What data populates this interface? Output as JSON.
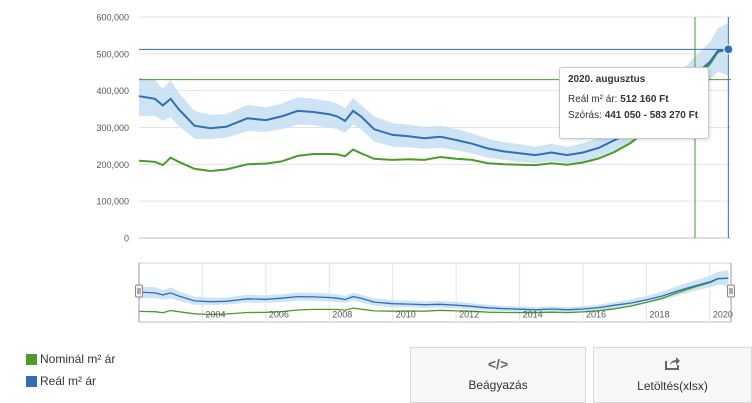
{
  "chart_data": [
    {
      "type": "line",
      "x_unit": "month",
      "xlim": [
        "2002-01",
        "2020-09"
      ],
      "ylim": [
        0,
        600000
      ],
      "y_ticks": [
        "0",
        "100,000",
        "200,000",
        "300,000",
        "400,000",
        "500,000",
        "600,000"
      ],
      "y_tick_values": [
        0,
        100000,
        200000,
        300000,
        400000,
        500000,
        600000
      ],
      "grid": true,
      "legend": "bottom-left",
      "series": [
        {
          "name": "Nominál m² ár",
          "color": "#4c9a2a",
          "points": [
            [
              "2002-01",
              210000
            ],
            [
              "2002-07",
              207000
            ],
            [
              "2002-10",
              198000
            ],
            [
              "2003-01",
              218000
            ],
            [
              "2003-04",
              207000
            ],
            [
              "2003-10",
              188000
            ],
            [
              "2004-04",
              182000
            ],
            [
              "2004-10",
              186000
            ],
            [
              "2005-06",
              200000
            ],
            [
              "2006-01",
              202000
            ],
            [
              "2006-07",
              208000
            ],
            [
              "2007-01",
              223000
            ],
            [
              "2007-07",
              228000
            ],
            [
              "2008-01",
              228000
            ],
            [
              "2008-04",
              227000
            ],
            [
              "2008-07",
              222000
            ],
            [
              "2008-10",
              240000
            ],
            [
              "2009-01",
              230000
            ],
            [
              "2009-06",
              215000
            ],
            [
              "2010-01",
              212000
            ],
            [
              "2010-07",
              214000
            ],
            [
              "2011-01",
              212000
            ],
            [
              "2011-07",
              220000
            ],
            [
              "2012-01",
              215000
            ],
            [
              "2012-07",
              212000
            ],
            [
              "2013-01",
              203000
            ],
            [
              "2013-07",
              200000
            ],
            [
              "2014-01",
              199000
            ],
            [
              "2014-07",
              198000
            ],
            [
              "2015-01",
              203000
            ],
            [
              "2015-07",
              199000
            ],
            [
              "2016-01",
              205000
            ],
            [
              "2016-07",
              216000
            ],
            [
              "2017-01",
              234000
            ],
            [
              "2017-07",
              258000
            ],
            [
              "2018-01",
              292000
            ],
            [
              "2018-07",
              330000
            ],
            [
              "2019-01",
              382000
            ],
            [
              "2019-07",
              430000
            ],
            [
              "2020-01",
              472000
            ],
            [
              "2020-04",
              505000
            ],
            [
              "2020-08",
              512000
            ]
          ]
        },
        {
          "name": "Reál m² ár",
          "color": "#2f6fb5",
          "band_label": "Szórás",
          "points": [
            [
              "2002-01",
              385000
            ],
            [
              "2002-07",
              378000
            ],
            [
              "2002-10",
              360000
            ],
            [
              "2003-01",
              378000
            ],
            [
              "2003-04",
              350000
            ],
            [
              "2003-10",
              305000
            ],
            [
              "2004-04",
              298000
            ],
            [
              "2004-10",
              302000
            ],
            [
              "2005-06",
              325000
            ],
            [
              "2006-01",
              320000
            ],
            [
              "2006-07",
              330000
            ],
            [
              "2007-01",
              345000
            ],
            [
              "2007-07",
              342000
            ],
            [
              "2008-01",
              336000
            ],
            [
              "2008-04",
              330000
            ],
            [
              "2008-07",
              318000
            ],
            [
              "2008-10",
              345000
            ],
            [
              "2009-01",
              330000
            ],
            [
              "2009-06",
              295000
            ],
            [
              "2010-01",
              280000
            ],
            [
              "2010-07",
              276000
            ],
            [
              "2011-01",
              271000
            ],
            [
              "2011-07",
              275000
            ],
            [
              "2012-01",
              266000
            ],
            [
              "2012-07",
              256000
            ],
            [
              "2013-01",
              243000
            ],
            [
              "2013-07",
              235000
            ],
            [
              "2014-01",
              230000
            ],
            [
              "2014-07",
              225000
            ],
            [
              "2015-01",
              232000
            ],
            [
              "2015-07",
              225000
            ],
            [
              "2016-01",
              232000
            ],
            [
              "2016-07",
              245000
            ],
            [
              "2017-01",
              266000
            ],
            [
              "2017-07",
              285000
            ],
            [
              "2018-01",
              315000
            ],
            [
              "2018-07",
              350000
            ],
            [
              "2019-01",
              398000
            ],
            [
              "2019-07",
              440000
            ],
            [
              "2020-01",
              478000
            ],
            [
              "2020-04",
              508000
            ],
            [
              "2020-08",
              512160
            ]
          ],
          "band": [
            [
              "2002-01",
              330000,
              435000
            ],
            [
              "2002-07",
              332000,
              430000
            ],
            [
              "2002-10",
              318000,
              405000
            ],
            [
              "2003-01",
              328000,
              428000
            ],
            [
              "2003-04",
              305000,
              395000
            ],
            [
              "2003-10",
              270000,
              345000
            ],
            [
              "2004-04",
              268000,
              335000
            ],
            [
              "2004-10",
              272000,
              336000
            ],
            [
              "2005-06",
              290000,
              362000
            ],
            [
              "2006-01",
              288000,
              355000
            ],
            [
              "2006-07",
              295000,
              365000
            ],
            [
              "2007-01",
              308000,
              382000
            ],
            [
              "2007-07",
              306000,
              378000
            ],
            [
              "2008-01",
              300000,
              372000
            ],
            [
              "2008-04",
              295000,
              365000
            ],
            [
              "2008-07",
              286000,
              352000
            ],
            [
              "2008-10",
              308000,
              380000
            ],
            [
              "2009-01",
              295000,
              362000
            ],
            [
              "2009-06",
              262000,
              330000
            ],
            [
              "2010-01",
              248000,
              312000
            ],
            [
              "2010-07",
              246000,
              308000
            ],
            [
              "2011-01",
              242000,
              302000
            ],
            [
              "2011-07",
              245000,
              305000
            ],
            [
              "2012-01",
              238000,
              296000
            ],
            [
              "2012-07",
              230000,
              284000
            ],
            [
              "2013-01",
              218000,
              270000
            ],
            [
              "2013-07",
              212000,
              260000
            ],
            [
              "2014-01",
              207000,
              255000
            ],
            [
              "2014-07",
              203000,
              248000
            ],
            [
              "2015-01",
              209000,
              256000
            ],
            [
              "2015-07",
              203000,
              248000
            ],
            [
              "2016-01",
              208000,
              257000
            ],
            [
              "2016-07",
              220000,
              272000
            ],
            [
              "2017-01",
              238000,
              295000
            ],
            [
              "2017-07",
              255000,
              318000
            ],
            [
              "2018-01",
              282000,
              350000
            ],
            [
              "2018-07",
              312000,
              390000
            ],
            [
              "2019-01",
              355000,
              442000
            ],
            [
              "2019-07",
              395000,
              490000
            ],
            [
              "2020-01",
              428000,
              532000
            ],
            [
              "2020-04",
              452000,
              570000
            ],
            [
              "2020-08",
              441050,
              583270
            ]
          ]
        }
      ],
      "navigator": {
        "x_ticks": [
          "2004",
          "2006",
          "2008",
          "2010",
          "2012",
          "2014",
          "2016",
          "2018",
          "2020"
        ]
      },
      "crosshair": {
        "x": "2020-08",
        "y": 512160,
        "nominal_reference": 430000
      },
      "tooltip": {
        "title": "2020. augusztus",
        "line1_label": "Reál m² ár:",
        "line1_value": "512 160 Ft",
        "line2_label": "Szórás:",
        "line2_value": "441 050 - 583 270 Ft"
      }
    }
  ],
  "legend": {
    "items": [
      {
        "label": "Nominál m² ár",
        "color": "#4c9a2a"
      },
      {
        "label": "Reál m² ár",
        "color": "#2f6fb5"
      }
    ]
  },
  "buttons": {
    "embed": {
      "label": "Beágyazás",
      "icon": "code-icon"
    },
    "download": {
      "label": "Letöltés(xlsx)",
      "icon": "share-export-icon"
    }
  }
}
